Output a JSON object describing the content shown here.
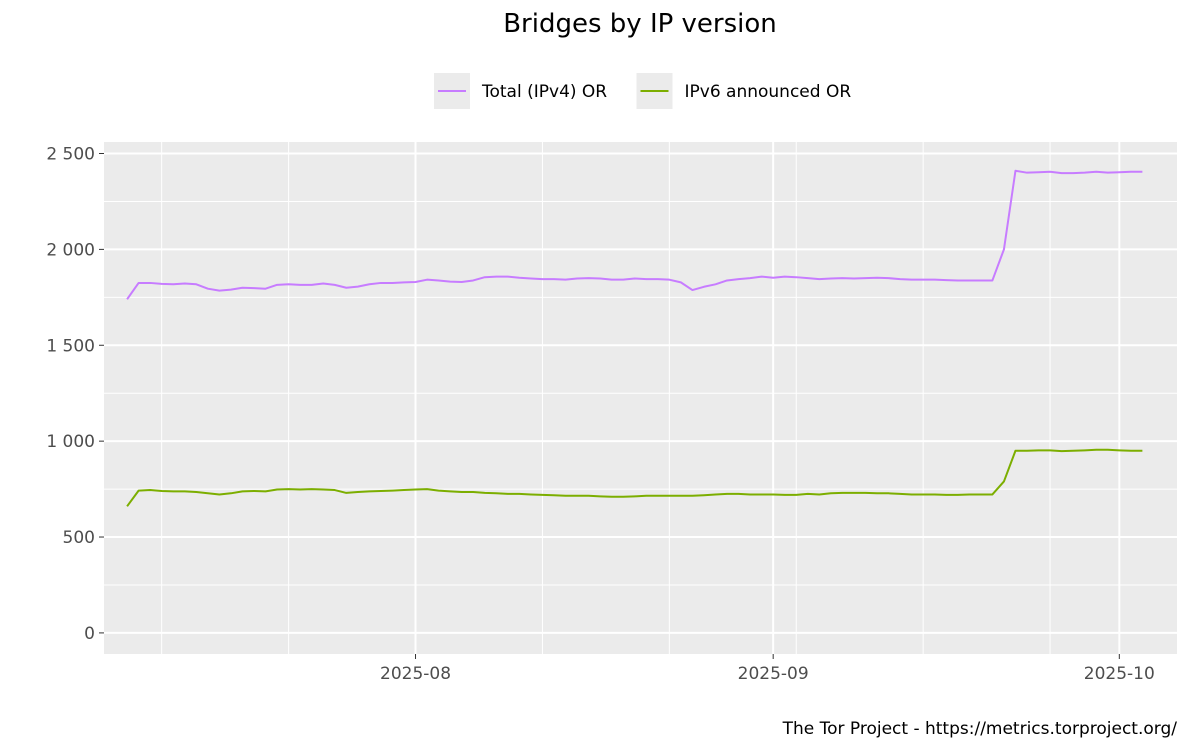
{
  "chart_data": {
    "type": "line",
    "title": "Bridges by IP version",
    "xlabel": "",
    "ylabel": "",
    "caption": "The Tor Project - https://metrics.torproject.org/",
    "legend_position": "top",
    "grid": true,
    "xlim": [
      "2025-07-05",
      "2025-10-06"
    ],
    "ylim": [
      -110,
      2560
    ],
    "x_ticks": [
      {
        "date": "2025-08-01",
        "label": "2025-08"
      },
      {
        "date": "2025-09-01",
        "label": "2025-09"
      },
      {
        "date": "2025-10-01",
        "label": "2025-10"
      }
    ],
    "y_ticks": [
      {
        "value": 0,
        "label": "0"
      },
      {
        "value": 500,
        "label": "500"
      },
      {
        "value": 1000,
        "label": "1 000"
      },
      {
        "value": 1500,
        "label": "1 500"
      },
      {
        "value": 2000,
        "label": "2 000"
      },
      {
        "value": 2500,
        "label": "2 500"
      }
    ],
    "x": [
      "2025-07-07",
      "2025-07-08",
      "2025-07-09",
      "2025-07-10",
      "2025-07-11",
      "2025-07-12",
      "2025-07-13",
      "2025-07-14",
      "2025-07-15",
      "2025-07-16",
      "2025-07-17",
      "2025-07-18",
      "2025-07-19",
      "2025-07-20",
      "2025-07-21",
      "2025-07-22",
      "2025-07-23",
      "2025-07-24",
      "2025-07-25",
      "2025-07-26",
      "2025-07-27",
      "2025-07-28",
      "2025-07-29",
      "2025-07-30",
      "2025-07-31",
      "2025-08-01",
      "2025-08-02",
      "2025-08-03",
      "2025-08-04",
      "2025-08-05",
      "2025-08-06",
      "2025-08-07",
      "2025-08-08",
      "2025-08-09",
      "2025-08-10",
      "2025-08-11",
      "2025-08-12",
      "2025-08-13",
      "2025-08-14",
      "2025-08-15",
      "2025-08-16",
      "2025-08-17",
      "2025-08-18",
      "2025-08-19",
      "2025-08-20",
      "2025-08-21",
      "2025-08-22",
      "2025-08-23",
      "2025-08-24",
      "2025-08-25",
      "2025-08-26",
      "2025-08-27",
      "2025-08-28",
      "2025-08-29",
      "2025-08-30",
      "2025-08-31",
      "2025-09-01",
      "2025-09-02",
      "2025-09-03",
      "2025-09-04",
      "2025-09-05",
      "2025-09-06",
      "2025-09-07",
      "2025-09-08",
      "2025-09-09",
      "2025-09-10",
      "2025-09-11",
      "2025-09-12",
      "2025-09-13",
      "2025-09-14",
      "2025-09-15",
      "2025-09-16",
      "2025-09-17",
      "2025-09-18",
      "2025-09-19",
      "2025-09-20",
      "2025-09-21",
      "2025-09-22",
      "2025-09-23",
      "2025-09-24",
      "2025-09-25",
      "2025-09-26",
      "2025-09-27",
      "2025-09-28",
      "2025-09-29",
      "2025-09-30",
      "2025-10-01",
      "2025-10-02",
      "2025-10-03"
    ],
    "series": [
      {
        "name": "Total (IPv4) OR",
        "color": "#c77cff",
        "values": [
          1740,
          1825,
          1825,
          1820,
          1818,
          1822,
          1818,
          1795,
          1785,
          1790,
          1800,
          1798,
          1795,
          1815,
          1818,
          1815,
          1815,
          1822,
          1815,
          1800,
          1806,
          1818,
          1825,
          1825,
          1828,
          1830,
          1842,
          1838,
          1832,
          1830,
          1838,
          1855,
          1858,
          1858,
          1852,
          1848,
          1845,
          1845,
          1842,
          1848,
          1850,
          1848,
          1842,
          1842,
          1848,
          1845,
          1845,
          1842,
          1828,
          1788,
          1805,
          1818,
          1838,
          1845,
          1850,
          1858,
          1852,
          1858,
          1855,
          1850,
          1845,
          1848,
          1850,
          1848,
          1850,
          1852,
          1850,
          1845,
          1842,
          1842,
          1842,
          1840,
          1838,
          1838,
          1838,
          1838,
          2000,
          2410,
          2400,
          2402,
          2405,
          2398,
          2398,
          2400,
          2405,
          2400,
          2402,
          2405,
          2405
        ]
      },
      {
        "name": "IPv6 announced OR",
        "color": "#7cae00",
        "values": [
          660,
          742,
          745,
          740,
          738,
          738,
          735,
          728,
          722,
          728,
          738,
          740,
          738,
          748,
          750,
          748,
          750,
          748,
          745,
          730,
          735,
          738,
          740,
          742,
          745,
          748,
          750,
          742,
          738,
          735,
          735,
          730,
          728,
          725,
          725,
          722,
          720,
          718,
          715,
          715,
          715,
          712,
          710,
          710,
          712,
          715,
          715,
          715,
          715,
          715,
          718,
          722,
          725,
          725,
          722,
          722,
          722,
          720,
          720,
          725,
          722,
          728,
          730,
          730,
          730,
          728,
          728,
          725,
          722,
          722,
          722,
          720,
          720,
          722,
          722,
          722,
          790,
          950,
          950,
          952,
          952,
          948,
          950,
          952,
          955,
          955,
          952,
          950,
          950
        ]
      }
    ]
  }
}
